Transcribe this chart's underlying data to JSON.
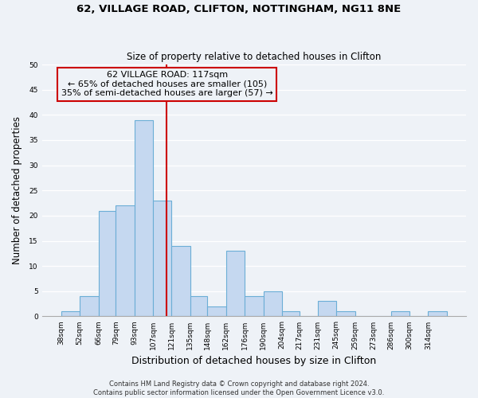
{
  "title1": "62, VILLAGE ROAD, CLIFTON, NOTTINGHAM, NG11 8NE",
  "title2": "Size of property relative to detached houses in Clifton",
  "xlabel": "Distribution of detached houses by size in Clifton",
  "ylabel": "Number of detached properties",
  "bins": [
    38,
    52,
    66,
    79,
    93,
    107,
    121,
    135,
    148,
    162,
    176,
    190,
    204,
    217,
    231,
    245,
    259,
    273,
    286,
    300,
    314
  ],
  "bin_labels": [
    "38sqm",
    "52sqm",
    "66sqm",
    "79sqm",
    "93sqm",
    "107sqm",
    "121sqm",
    "135sqm",
    "148sqm",
    "162sqm",
    "176sqm",
    "190sqm",
    "204sqm",
    "217sqm",
    "231sqm",
    "245sqm",
    "259sqm",
    "273sqm",
    "286sqm",
    "300sqm",
    "314sqm"
  ],
  "counts": [
    1,
    4,
    21,
    22,
    39,
    23,
    14,
    4,
    2,
    13,
    4,
    5,
    1,
    0,
    3,
    1,
    0,
    0,
    1,
    0,
    1
  ],
  "bar_color": "#c5d8f0",
  "bar_edge_color": "#6baed6",
  "reference_line_x": 117,
  "reference_line_color": "#cc0000",
  "annotation_title": "62 VILLAGE ROAD: 117sqm",
  "annotation_line1": "← 65% of detached houses are smaller (105)",
  "annotation_line2": "35% of semi-detached houses are larger (57) →",
  "annotation_box_edge_color": "#cc0000",
  "ylim": [
    0,
    50
  ],
  "yticks": [
    0,
    5,
    10,
    15,
    20,
    25,
    30,
    35,
    40,
    45,
    50
  ],
  "footer1": "Contains HM Land Registry data © Crown copyright and database right 2024.",
  "footer2": "Contains public sector information licensed under the Open Government Licence v3.0.",
  "background_color": "#eef2f7",
  "grid_color": "#ffffff",
  "title1_fontsize": 9.5,
  "title2_fontsize": 8.5,
  "xlabel_fontsize": 9,
  "ylabel_fontsize": 8.5,
  "tick_fontsize": 6.5,
  "ann_fontsize": 8,
  "footer_fontsize": 6
}
